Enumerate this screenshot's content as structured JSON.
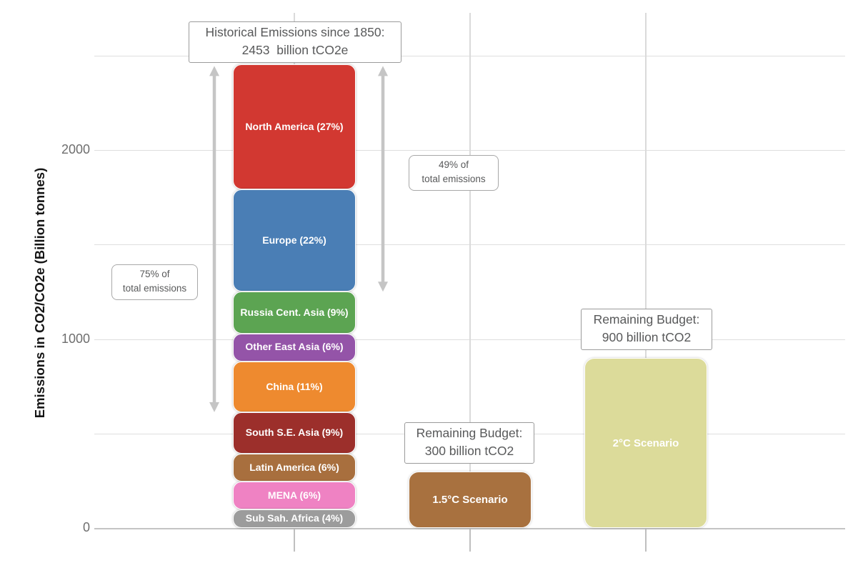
{
  "chart_data": {
    "type": "bar",
    "title": "Historical Emissions since 1850: 2453 billion tCO2e",
    "ylabel": "Emissions in CO2/CO2e (Billion tonnes)",
    "xlabel": "",
    "ylim": [
      0,
      2500
    ],
    "y_ticks": [
      0,
      1000,
      2000
    ],
    "gridline_step": 500,
    "grid": "on",
    "unit": "billion tonnes CO2/CO2e",
    "total_historical_emissions": 2453,
    "title_box": {
      "line1": "Historical Emissions since 1850:",
      "line2": "2453  billion tCO2e"
    },
    "historical_stack": {
      "category": "Historical Emissions since 1850",
      "center_x": 412,
      "segments_top_to_bottom": [
        {
          "name": "North America",
          "pct": 27,
          "value": 662,
          "color": "#d23831",
          "label": "North America (27%)"
        },
        {
          "name": "Europe",
          "pct": 22,
          "value": 540,
          "color": "#4a7eb5",
          "label": "Europe (22%)"
        },
        {
          "name": "Russia Cent. Asia",
          "pct": 9,
          "value": 221,
          "color": "#5ca452",
          "label": "Russia Cent. Asia (9%)"
        },
        {
          "name": "Other East Asia",
          "pct": 6,
          "value": 147,
          "color": "#9454a8",
          "label": "Other East Asia (6%)"
        },
        {
          "name": "China",
          "pct": 11,
          "value": 270,
          "color": "#ee8a2f",
          "label": "China (11%)"
        },
        {
          "name": "South S.E. Asia",
          "pct": 9,
          "value": 221,
          "color": "#9c2f2b",
          "label": "South S.E. Asia (9%)"
        },
        {
          "name": "Latin America",
          "pct": 6,
          "value": 147,
          "color": "#a86f3e",
          "label": "Latin America (6%)"
        },
        {
          "name": "MENA",
          "pct": 6,
          "value": 147,
          "color": "#ef82c3",
          "label": "MENA (6%)"
        },
        {
          "name": "Sub Sah. Africa",
          "pct": 4,
          "value": 98,
          "color": "#9c9c9c",
          "label": "Sub Sah. Africa (4%)"
        }
      ]
    },
    "budget_bars": [
      {
        "label": "1.5°C Scenario",
        "value": 300,
        "color": "#a8713f",
        "center_x": 658,
        "annotation": {
          "line1": "Remaining Budget:",
          "line2": "300 billion tCO2"
        }
      },
      {
        "label": "2°C Scenario",
        "value": 900,
        "color": "#dcdb9a",
        "center_x": 904,
        "annotation": {
          "line1": "Remaining Budget:",
          "line2": "900 billion tCO2"
        }
      }
    ],
    "arrows": [
      {
        "label_line1": "75% of",
        "label_line2": "total emissions",
        "covers_pct_from_top": 75,
        "x": 300
      },
      {
        "label_line1": "49% of",
        "label_line2": "total emissions",
        "covers_pct_from_top": 49,
        "x": 536
      }
    ]
  }
}
